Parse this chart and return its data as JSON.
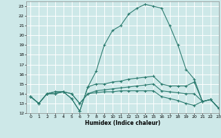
{
  "title": "",
  "xlabel": "Humidex (Indice chaleur)",
  "xlim": [
    -0.5,
    23
  ],
  "ylim": [
    12,
    23.5
  ],
  "yticks": [
    12,
    13,
    14,
    15,
    16,
    17,
    18,
    19,
    20,
    21,
    22,
    23
  ],
  "xticks": [
    0,
    1,
    2,
    3,
    4,
    5,
    6,
    7,
    8,
    9,
    10,
    11,
    12,
    13,
    14,
    15,
    16,
    17,
    18,
    19,
    20,
    21,
    22,
    23
  ],
  "background_color": "#cde8e8",
  "grid_color": "#ffffff",
  "line_color": "#2a7a6e",
  "line1": [
    13.7,
    13.0,
    14.0,
    14.0,
    14.2,
    13.5,
    12.2,
    14.7,
    16.3,
    19.0,
    20.5,
    21.0,
    22.2,
    22.8,
    23.2,
    23.0,
    22.8,
    21.0,
    19.0,
    16.5,
    15.5,
    13.2,
    13.4,
    12.5
  ],
  "line2": [
    13.7,
    13.0,
    14.0,
    14.0,
    14.2,
    13.5,
    12.2,
    14.7,
    15.0,
    15.0,
    15.2,
    15.3,
    15.5,
    15.6,
    15.7,
    15.8,
    15.0,
    14.8,
    14.8,
    14.8,
    15.2,
    13.2,
    13.4,
    12.5
  ],
  "line3": [
    13.7,
    13.0,
    14.0,
    14.2,
    14.2,
    14.0,
    13.0,
    14.0,
    14.3,
    14.4,
    14.5,
    14.6,
    14.7,
    14.8,
    14.9,
    15.0,
    14.3,
    14.2,
    14.1,
    14.0,
    14.0,
    13.2,
    13.4,
    12.5
  ],
  "line4": [
    13.7,
    13.0,
    14.0,
    14.2,
    14.2,
    14.0,
    13.0,
    14.0,
    14.1,
    14.2,
    14.2,
    14.3,
    14.3,
    14.3,
    14.3,
    14.3,
    13.7,
    13.5,
    13.3,
    13.0,
    12.8,
    13.2,
    13.4,
    12.5
  ]
}
